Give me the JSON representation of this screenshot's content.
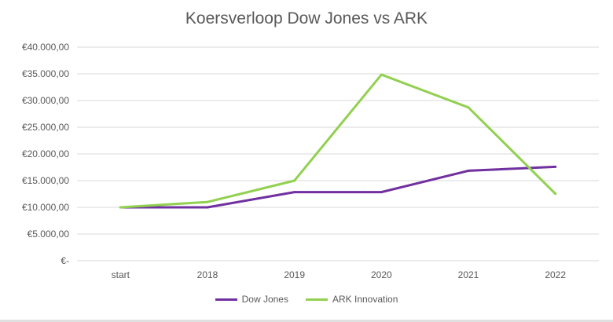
{
  "chart_data": {
    "type": "line",
    "title": "Koersverloop Dow Jones vs ARK",
    "categories": [
      "start",
      "2018",
      "2019",
      "2020",
      "2021",
      "2022"
    ],
    "yticks": [
      "€-",
      "€5.000,00",
      "€10.000,00",
      "€15.000,00",
      "€20.000,00",
      "€25.000,00",
      "€30.000,00",
      "€35.000,00",
      "€40.000,00"
    ],
    "ylim": [
      0,
      40000
    ],
    "grid": true,
    "legend_position": "bottom",
    "series": [
      {
        "name": "Dow Jones",
        "color": "#7030A0",
        "values": [
          10000,
          10000,
          12850,
          12850,
          16850,
          17600
        ]
      },
      {
        "name": "ARK Innovation",
        "color": "#92D050",
        "values": [
          10000,
          11000,
          15000,
          34850,
          28700,
          12550
        ]
      }
    ]
  }
}
